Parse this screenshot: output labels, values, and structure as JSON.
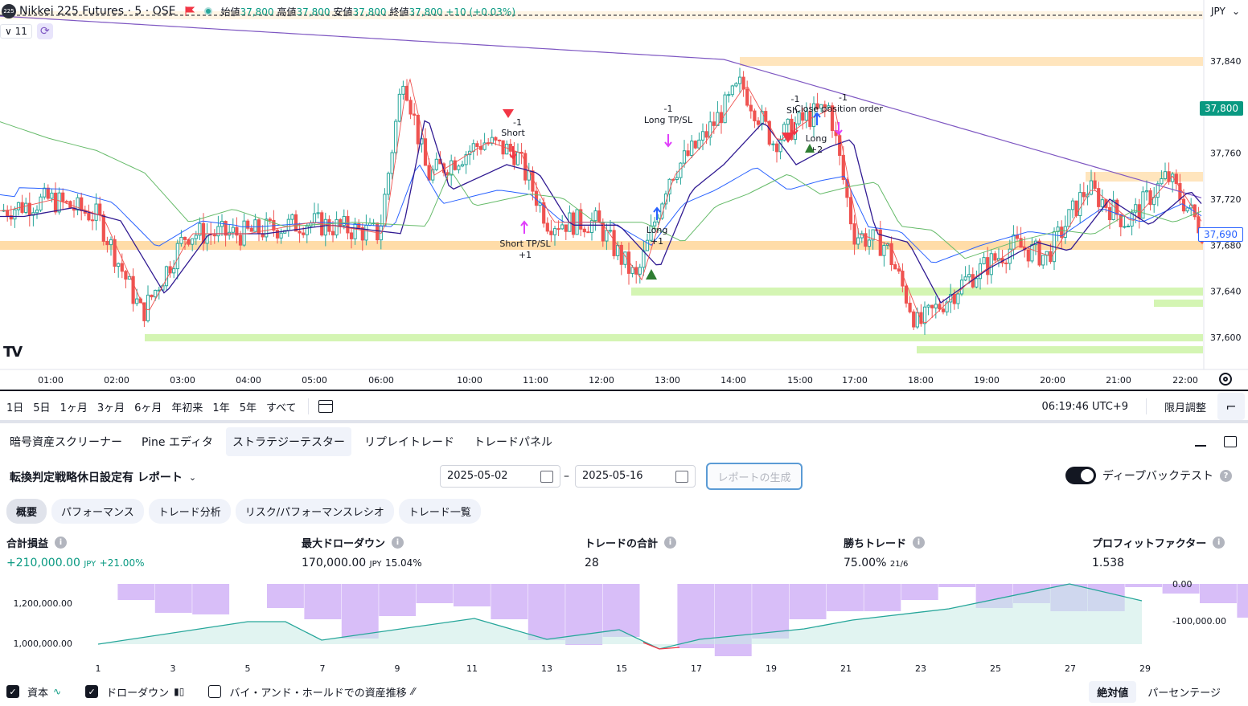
{
  "chart": {
    "symbol_badge": "225",
    "symbol": "Nikkei 225 Futures · 5 · OSE",
    "ohlc": [
      {
        "k": "始値",
        "v": "37,800"
      },
      {
        "k": "高値",
        "v": "37,800"
      },
      {
        "k": "安値",
        "v": "37,800"
      },
      {
        "k": "終値",
        "v": "37,800 +10 (+0.03%)"
      }
    ],
    "interval_count": "11",
    "currency": "JPY",
    "y_ticks": [
      "37,840",
      "37,800",
      "37,760",
      "37,720",
      "37,680",
      "37,640",
      "37,600"
    ],
    "x_ticks": [
      "01:00",
      "02:00",
      "03:00",
      "04:00",
      "05:00",
      "06:00",
      "10:00",
      "11:00",
      "12:00",
      "13:00",
      "14:00",
      "15:00",
      "17:00",
      "18:00",
      "19:00",
      "20:00",
      "21:00",
      "22:00"
    ],
    "last_price_tag": "37,800",
    "current_price_tag": "37,690",
    "labels": {
      "short": "Short",
      "short_qty": "-1",
      "short_tpsl": "Short TP/SL",
      "short_tpsl_qty": "+1",
      "long_tpsl": "Long TP/SL",
      "long_tpsl_qty": "-1",
      "long": "Long",
      "long_qty": "+1",
      "close_order": "Close position order",
      "close_qty": "-1",
      "short2": "Sh",
      "short2_qty": "-1",
      "long2": "Long",
      "long2_qty": "+2"
    },
    "colors": {
      "up": "#26a69a",
      "down": "#ef5350",
      "purple": "#7e57c2",
      "navy": "#311b92",
      "blue": "#2962ff",
      "green_ma": "#66bb6a",
      "orange_zone": "#ffe0b2",
      "green_zone": "#ccf3a6"
    }
  },
  "range_bar": {
    "ranges": [
      "1日",
      "5日",
      "1ヶ月",
      "3ヶ月",
      "6ヶ月",
      "年初来",
      "1年",
      "5年",
      "すべて"
    ],
    "clock": "06:19:46 UTC+9",
    "adjust": "限月調整"
  },
  "panel": {
    "tabs": [
      "暗号資産スクリーナー",
      "Pine エディタ",
      "ストラテジーテスター",
      "リプレイトレード",
      "トレードパネル"
    ],
    "active_tab": 2
  },
  "strategy": {
    "name": "転換判定戦略休日設定有 レポート",
    "date_from": "2025-05-02",
    "date_to": "2025-05-16",
    "generate_btn": "レポートの生成",
    "deep_backtest": "ディープバックテスト",
    "sub_tabs": [
      "概要",
      "パフォーマンス",
      "トレード分析",
      "リスク/パフォーマンスレシオ",
      "トレード一覧"
    ]
  },
  "metrics": {
    "net_profit": {
      "label": "合計損益",
      "value": "+210,000.00",
      "unit": "JPY",
      "pct": "+21.00%"
    },
    "max_dd": {
      "label": "最大ドローダウン",
      "value": "170,000.00",
      "unit": "JPY",
      "pct": "15.04%"
    },
    "total_trades": {
      "label": "トレードの合計",
      "value": "28"
    },
    "win_trades": {
      "label": "勝ちトレード",
      "value": "75.00%",
      "ratio": "21/6"
    },
    "profit_factor": {
      "label": "プロフィットファクター",
      "value": "1.538"
    }
  },
  "equity": {
    "left_axis": [
      "1,200,000.00",
      "1,000,000.00"
    ],
    "right_axis": [
      "0.00",
      "-100,000.00"
    ],
    "x_ticks": [
      "1",
      "3",
      "5",
      "7",
      "9",
      "11",
      "13",
      "15",
      "17",
      "19",
      "21",
      "23",
      "25",
      "27",
      "29"
    ]
  },
  "footer": {
    "equity_label": "資本",
    "drawdown_label": "ドローダウン",
    "bh_label": "バイ・アンド・ホールドでの資産推移",
    "absolute": "絶対値",
    "percentage": "パーセンテージ"
  }
}
